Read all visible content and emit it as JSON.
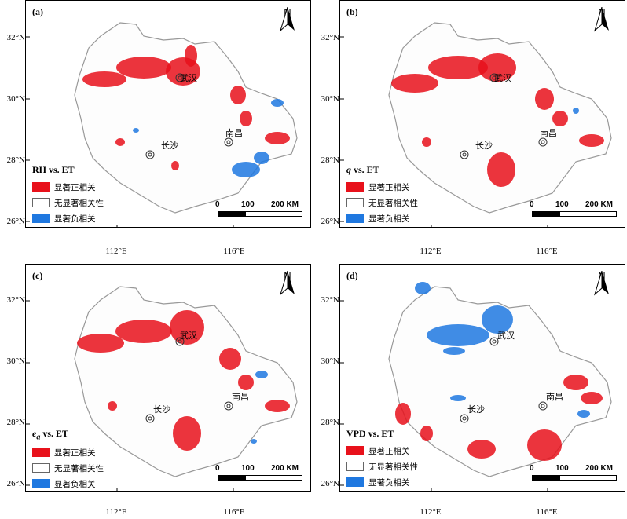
{
  "panels": [
    {
      "label": "(a)",
      "variable": "RH vs. ET",
      "var_main": "RH",
      "var_sub": ""
    },
    {
      "label": "(b)",
      "variable": "q vs. ET",
      "var_main": "q",
      "var_sub": ""
    },
    {
      "label": "(c)",
      "variable": "ea vs. ET",
      "var_main": "e",
      "var_sub": "a"
    },
    {
      "label": "(d)",
      "variable": "VPD vs. ET",
      "var_main": "VPD",
      "var_sub": ""
    }
  ],
  "legend": {
    "positive": "显著正相关",
    "none": "无显著相关性",
    "negative": "显著负相关",
    "colors": {
      "positive": "#e8111b",
      "none": "#ffffff",
      "negative": "#1f78e0"
    }
  },
  "north": "N",
  "scale_bar": {
    "labels": [
      "0",
      "100",
      "200 KM"
    ]
  },
  "latitudes": [
    "32°N",
    "30°N",
    "28°N",
    "26°N"
  ],
  "longitudes": [
    "112°E",
    "116°E"
  ],
  "cities": {
    "wuhan": "武汉",
    "changsha": "长沙",
    "nanchang": "南昌"
  }
}
